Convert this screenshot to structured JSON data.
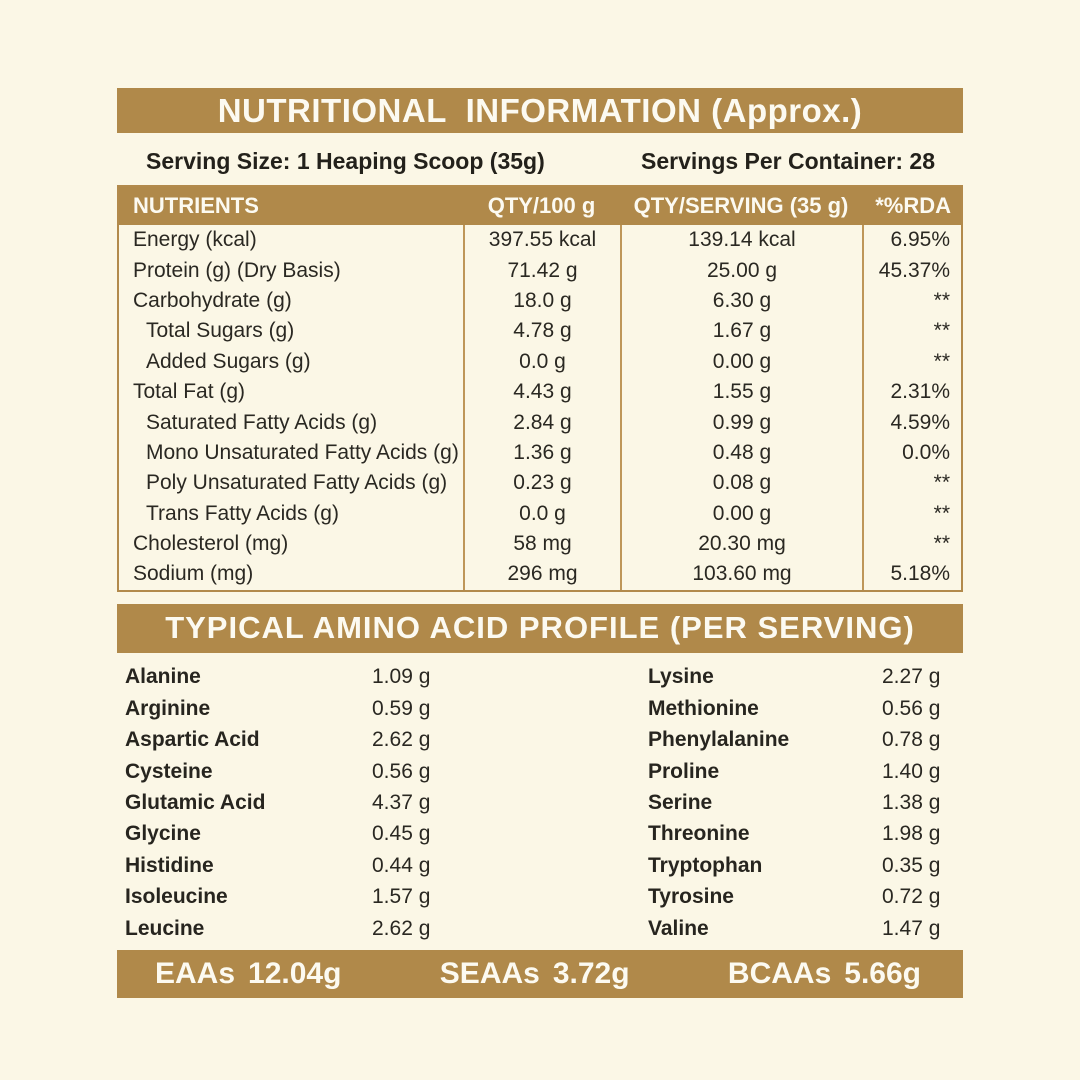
{
  "colors": {
    "gold": "#B0894A",
    "cream": "#FBF7E6",
    "text": "#2A2822",
    "divider": "#BE9659"
  },
  "header": {
    "title": "NUTRITIONAL  INFORMATION (Approx.)",
    "serving_size": "Serving Size: 1 Heaping Scoop (35g)",
    "servings_per_container": "Servings Per Container: 28"
  },
  "nutrition_table": {
    "headers": [
      "NUTRIENTS",
      "QTY/100 g",
      "QTY/SERVING (35 g)",
      "*%RDA"
    ],
    "rows": [
      {
        "name": "Energy (kcal)",
        "qty100": "397.55 kcal",
        "qty_serving": "139.14 kcal",
        "rda": "6.95%",
        "indent": false
      },
      {
        "name": "Protein (g) (Dry Basis)",
        "qty100": "71.42 g",
        "qty_serving": "25.00 g",
        "rda": "45.37%",
        "indent": false
      },
      {
        "name": "Carbohydrate (g)",
        "qty100": "18.0 g",
        "qty_serving": "6.30 g",
        "rda": "**",
        "indent": false
      },
      {
        "name": "Total Sugars (g)",
        "qty100": "4.78 g",
        "qty_serving": "1.67 g",
        "rda": "**",
        "indent": true
      },
      {
        "name": "Added Sugars (g)",
        "qty100": "0.0 g",
        "qty_serving": "0.00 g",
        "rda": "**",
        "indent": true
      },
      {
        "name": "Total Fat (g)",
        "qty100": "4.43 g",
        "qty_serving": "1.55 g",
        "rda": "2.31%",
        "indent": false
      },
      {
        "name": "Saturated Fatty Acids (g)",
        "qty100": "2.84 g",
        "qty_serving": "0.99 g",
        "rda": "4.59%",
        "indent": true
      },
      {
        "name": "Mono Unsaturated Fatty Acids (g)",
        "qty100": "1.36 g",
        "qty_serving": "0.48 g",
        "rda": "0.0%",
        "indent": true
      },
      {
        "name": "Poly Unsaturated Fatty Acids (g)",
        "qty100": "0.23 g",
        "qty_serving": "0.08 g",
        "rda": "**",
        "indent": true
      },
      {
        "name": "Trans Fatty Acids (g)",
        "qty100": "0.0 g",
        "qty_serving": "0.00 g",
        "rda": "**",
        "indent": true
      },
      {
        "name": "Cholesterol (mg)",
        "qty100": "58 mg",
        "qty_serving": "20.30 mg",
        "rda": "**",
        "indent": false
      },
      {
        "name": "Sodium (mg)",
        "qty100": "296 mg",
        "qty_serving": "103.60 mg",
        "rda": "5.18%",
        "indent": false
      }
    ]
  },
  "amino_section": {
    "title": "TYPICAL AMINO ACID PROFILE (PER SERVING)",
    "left": [
      {
        "name": "Alanine",
        "value": "1.09 g"
      },
      {
        "name": "Arginine",
        "value": "0.59 g"
      },
      {
        "name": "Aspartic Acid",
        "value": "2.62 g"
      },
      {
        "name": "Cysteine",
        "value": "0.56 g"
      },
      {
        "name": "Glutamic Acid",
        "value": "4.37 g"
      },
      {
        "name": "Glycine",
        "value": "0.45 g"
      },
      {
        "name": "Histidine",
        "value": "0.44 g"
      },
      {
        "name": "Isoleucine",
        "value": "1.57 g"
      },
      {
        "name": "Leucine",
        "value": "2.62 g"
      }
    ],
    "right": [
      {
        "name": "Lysine",
        "value": "2.27 g"
      },
      {
        "name": "Methionine",
        "value": "0.56 g"
      },
      {
        "name": "Phenylalanine",
        "value": "0.78 g"
      },
      {
        "name": "Proline",
        "value": "1.40 g"
      },
      {
        "name": "Serine",
        "value": "1.38 g"
      },
      {
        "name": "Threonine",
        "value": "1.98 g"
      },
      {
        "name": "Tryptophan",
        "value": "0.35 g"
      },
      {
        "name": "Tyrosine",
        "value": "0.72 g"
      },
      {
        "name": "Valine",
        "value": "1.47 g"
      }
    ]
  },
  "footer": {
    "items": [
      {
        "label": "EAAs",
        "value": "12.04g"
      },
      {
        "label": "SEAAs",
        "value": "3.72g"
      },
      {
        "label": "BCAAs",
        "value": "5.66g"
      }
    ]
  }
}
